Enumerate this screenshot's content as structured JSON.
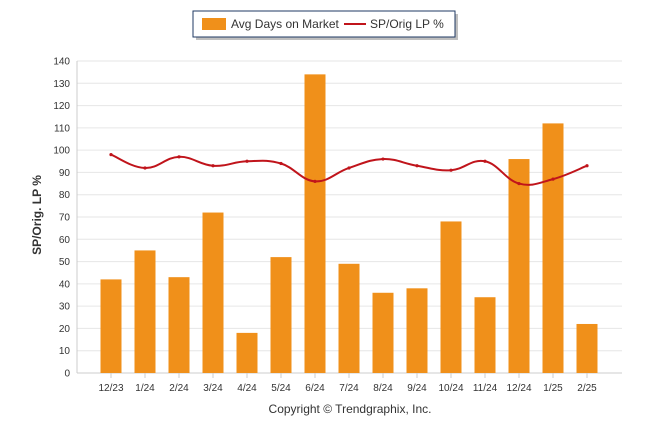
{
  "chart_data": {
    "type": "bar",
    "categories": [
      "12/23",
      "1/24",
      "2/24",
      "3/24",
      "4/24",
      "5/24",
      "6/24",
      "7/24",
      "8/24",
      "9/24",
      "10/24",
      "11/24",
      "12/24",
      "1/25",
      "2/25"
    ],
    "series": [
      {
        "name": "Avg Days on Market",
        "type": "bar",
        "color": "#f0901a",
        "values": [
          42,
          55,
          43,
          72,
          18,
          52,
          134,
          49,
          36,
          38,
          68,
          34,
          96,
          112,
          22
        ]
      },
      {
        "name": "SP/Orig LP %",
        "type": "line",
        "color": "#c0141b",
        "values": [
          98,
          92,
          97,
          93,
          95,
          94,
          86,
          92,
          96,
          93,
          91,
          95,
          85,
          87,
          93
        ]
      }
    ],
    "ylabel": "SP/Orig. LP %",
    "xlabel": "",
    "ylim": [
      0,
      140
    ],
    "yticks": [
      0,
      10,
      20,
      30,
      40,
      50,
      60,
      70,
      80,
      90,
      100,
      110,
      120,
      130,
      140
    ],
    "grid": true,
    "legend": "top-center"
  },
  "footer": "Copyright © Trendgraphix, Inc."
}
